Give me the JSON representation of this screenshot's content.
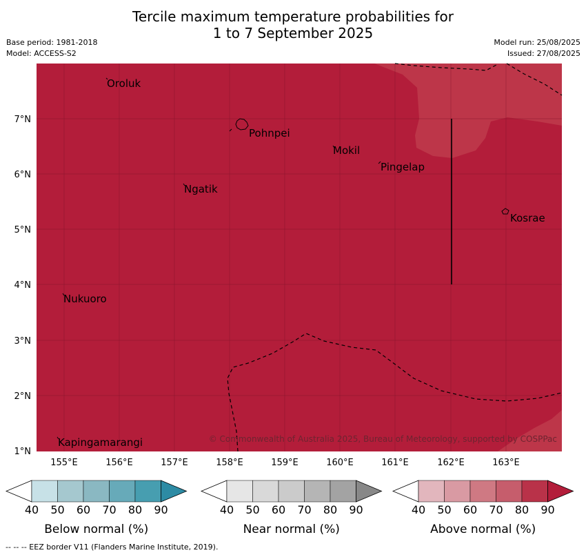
{
  "title": {
    "line1": "Tercile maximum temperature probabilities for",
    "line2": "1 to 7 September 2025"
  },
  "meta": {
    "base_period": "Base period: 1981-2018",
    "model": "Model: ACCESS-S2",
    "model_run": "Model run: 25/08/2025",
    "issued": "Issued: 27/08/2025"
  },
  "map": {
    "fill_color": "#b31d3a",
    "lighter_region_color": "#bd3649",
    "lat_ticks": [
      "7°N",
      "6°N",
      "5°N",
      "4°N",
      "3°N",
      "2°N",
      "1°N"
    ],
    "lon_ticks": [
      "155°E",
      "156°E",
      "157°E",
      "158°E",
      "159°E",
      "160°E",
      "161°E",
      "162°E",
      "163°E"
    ],
    "places": [
      "Oroluk",
      "Pohnpei",
      "Mokil",
      "Pingelap",
      "Ngatik",
      "Kosrae",
      "Nukuoro",
      "Kapingamarangi"
    ],
    "copyright": "© Commonwealth of Australia 2025, Bureau of Meteorology, supported by COSPPac"
  },
  "colorbars": [
    {
      "title": "Below normal (%)",
      "ticks": [
        "40",
        "50",
        "60",
        "70",
        "80",
        "90"
      ],
      "colors": [
        "#ffffff",
        "#c7e1e7",
        "#a5c8cf",
        "#8ab8c2",
        "#67aab9",
        "#479eb0",
        "#2d8ba4"
      ]
    },
    {
      "title": "Near normal (%)",
      "ticks": [
        "40",
        "50",
        "60",
        "70",
        "80",
        "90"
      ],
      "colors": [
        "#ffffff",
        "#e6e6e6",
        "#d9d9d9",
        "#cbcbcb",
        "#b5b5b5",
        "#a3a3a3",
        "#888888"
      ]
    },
    {
      "title": "Above normal (%)",
      "ticks": [
        "40",
        "50",
        "60",
        "70",
        "80",
        "90"
      ],
      "colors": [
        "#ffffff",
        "#e2b6bd",
        "#d99aa3",
        "#cf7983",
        "#c65d6c",
        "#b93249",
        "#b31d3a"
      ]
    }
  ],
  "footnote": "--  --  -- EEZ border V11 (Flanders Marine Institute, 2019)."
}
